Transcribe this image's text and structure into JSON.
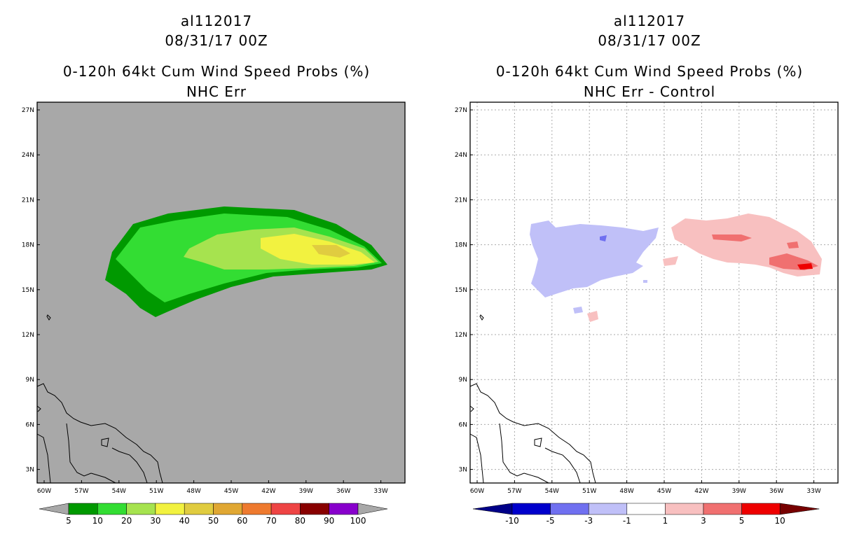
{
  "left": {
    "storm_id": "al112017",
    "datetime": "08/31/17 00Z",
    "product": "0-120h 64kt Cum Wind Speed Probs (%)",
    "subtitle": "NHC Err",
    "lat_labels": [
      "27N",
      "24N",
      "21N",
      "18N",
      "15N",
      "12N",
      "9N",
      "6N",
      "3N"
    ],
    "lon_labels": [
      "60W",
      "57W",
      "54W",
      "51W",
      "48W",
      "45W",
      "42W",
      "39W",
      "36W",
      "33W"
    ],
    "legend": {
      "labels": [
        "5",
        "10",
        "20",
        "30",
        "40",
        "50",
        "60",
        "70",
        "80",
        "90",
        "100"
      ],
      "colors": [
        "#009900",
        "#33dd33",
        "#a6e34f",
        "#f2f240",
        "#e0cc40",
        "#e0a733",
        "#ee7a2f",
        "#ee4444",
        "#880000",
        "#8800cc"
      ],
      "arrow_color": "#a8a8a8"
    },
    "map_background": "#a8a8a8"
  },
  "right": {
    "storm_id": "al112017",
    "datetime": "08/31/17 00Z",
    "product": "0-120h 64kt Cum Wind Speed Probs (%)",
    "subtitle": "NHC Err - Control",
    "lat_labels": [
      "27N",
      "24N",
      "21N",
      "18N",
      "15N",
      "12N",
      "9N",
      "6N",
      "3N"
    ],
    "lon_labels": [
      "60W",
      "57W",
      "54W",
      "51W",
      "48W",
      "45W",
      "42W",
      "39W",
      "36W",
      "33W"
    ],
    "legend": {
      "labels": [
        "-10",
        "-5",
        "-3",
        "-1",
        "1",
        "3",
        "5",
        "10"
      ],
      "colors": [
        "#0000cc",
        "#7070f0",
        "#c0c0f8",
        "#ffffff",
        "#f8c0c0",
        "#f07070",
        "#ee0000"
      ],
      "low_arrow_color": "#000088",
      "high_arrow_color": "#770000"
    },
    "map_background": "#ffffff"
  }
}
